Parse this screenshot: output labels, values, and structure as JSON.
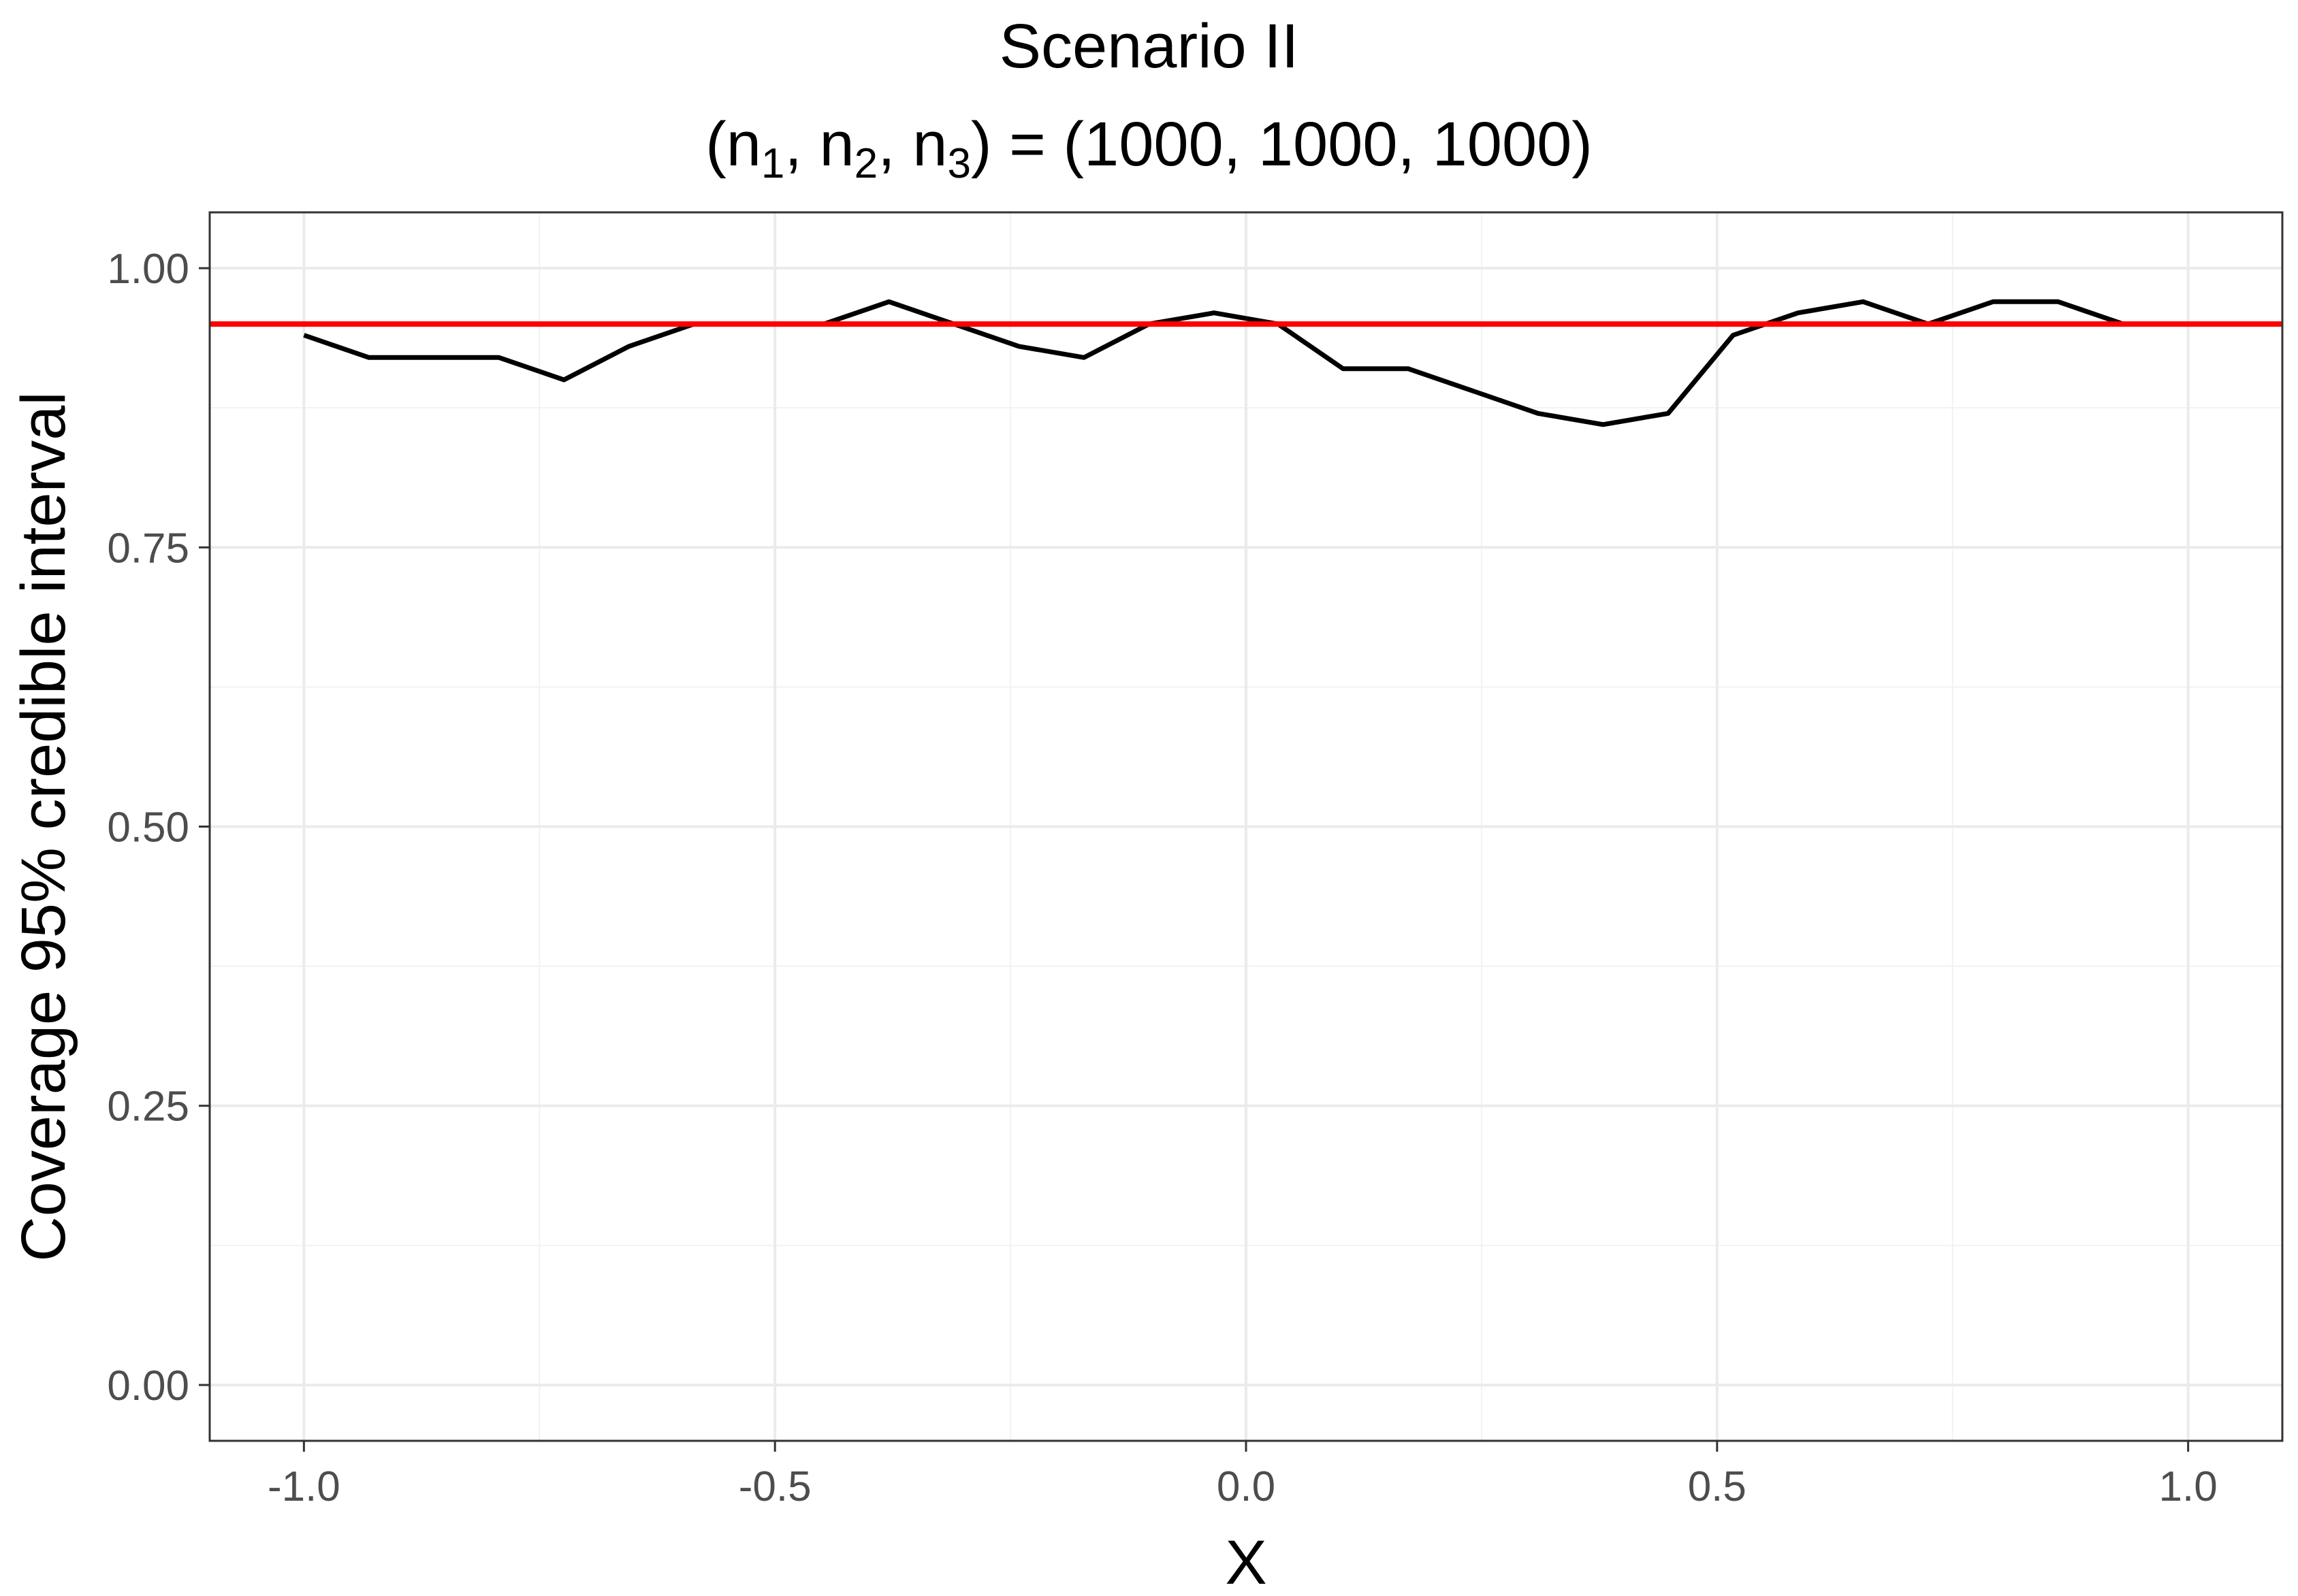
{
  "chart_data": {
    "type": "line",
    "title": "Scenario II",
    "subtitle": {
      "prefix": "(n",
      "sub1": "1",
      "mid1": ", n",
      "sub2": "2",
      "mid2": ", n",
      "sub3": "3",
      "suffix": ") = (1000, 1000, 1000)"
    },
    "xlabel": "X",
    "ylabel": "Coverage 95% credible interval",
    "xlim": [
      -1.1,
      1.1
    ],
    "ylim": [
      -0.05,
      1.05
    ],
    "x_ticks": [
      -1.0,
      -0.5,
      0.0,
      0.5,
      1.0
    ],
    "x_tick_labels": [
      "-1.0",
      "-0.5",
      "0.0",
      "0.5",
      "1.0"
    ],
    "y_ticks": [
      0.0,
      0.25,
      0.5,
      0.75,
      1.0
    ],
    "y_tick_labels": [
      "0.00",
      "0.25",
      "0.50",
      "0.75",
      "1.00"
    ],
    "grid": true,
    "series": [
      {
        "color": "#000000",
        "x": [
          -1.0,
          -0.931,
          -0.862,
          -0.793,
          -0.724,
          -0.655,
          -0.586,
          -0.517,
          -0.448,
          -0.379,
          -0.31,
          -0.241,
          -0.172,
          -0.103,
          -0.034,
          0.034,
          0.103,
          0.172,
          0.241,
          0.31,
          0.379,
          0.448,
          0.517,
          0.586,
          0.655,
          0.724,
          0.793,
          0.862,
          0.931,
          1.0
        ],
        "y": [
          0.94,
          0.92,
          0.92,
          0.92,
          0.9,
          0.93,
          0.95,
          0.95,
          0.95,
          0.97,
          0.95,
          0.93,
          0.92,
          0.95,
          0.96,
          0.95,
          0.91,
          0.91,
          0.89,
          0.87,
          0.86,
          0.87,
          0.94,
          0.96,
          0.97,
          0.95,
          0.97,
          0.97,
          0.95,
          0.95
        ]
      }
    ],
    "reference_line": {
      "y": 0.95,
      "color": "#ff0000"
    }
  }
}
